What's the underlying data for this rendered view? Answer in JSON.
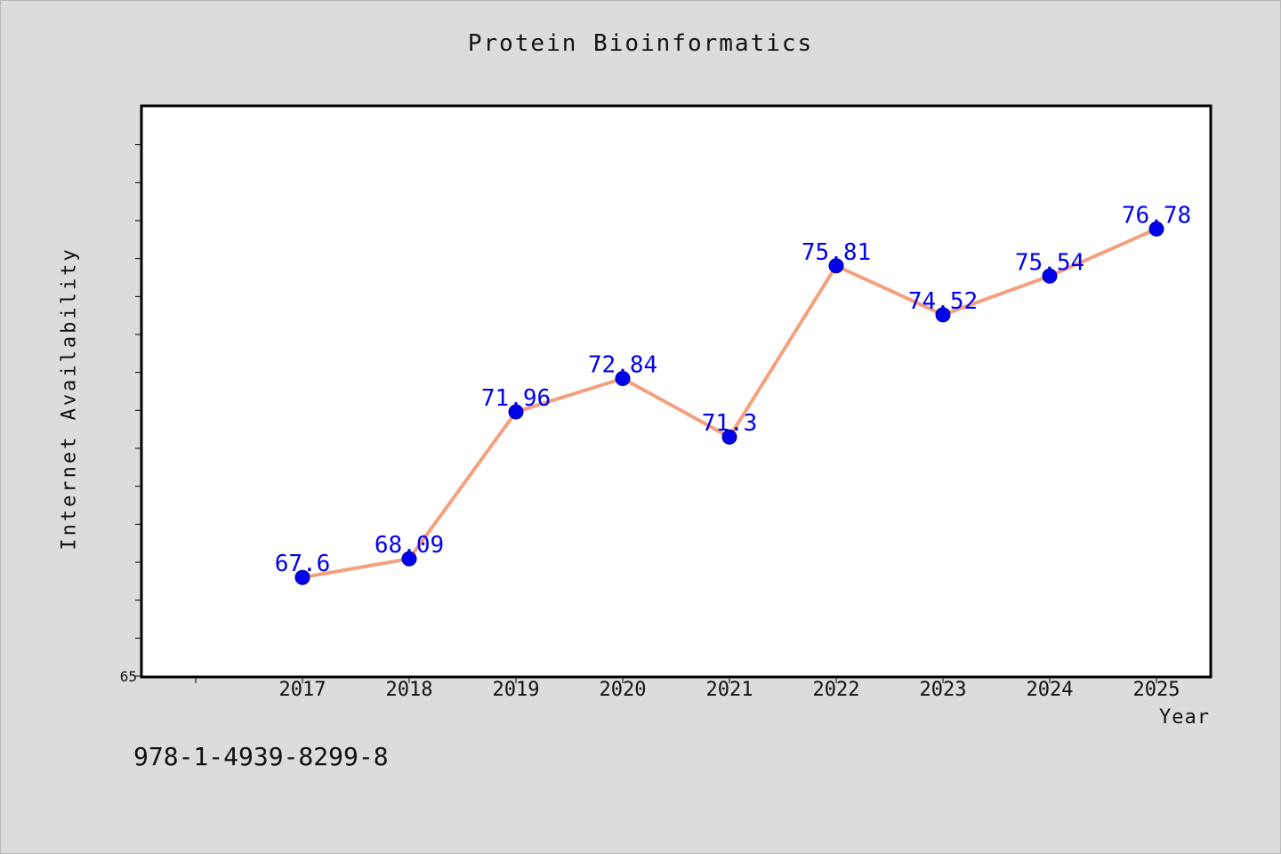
{
  "chart_data": {
    "type": "line",
    "title": "Protein Bioinformatics",
    "xlabel": "Year",
    "ylabel": "Internet Availability",
    "categories": [
      "2017",
      "2018",
      "2019",
      "2020",
      "2021",
      "2022",
      "2023",
      "2024",
      "2025"
    ],
    "series": [
      {
        "values": [
          67.6,
          68.09,
          71.96,
          72.84,
          71.3,
          75.81,
          74.52,
          75.54,
          76.78
        ],
        "labels": [
          "67.6",
          "68.09",
          "71.96",
          "72.84",
          "71.3",
          "75.81",
          "74.52",
          "75.54",
          "76.78"
        ]
      }
    ],
    "ylim": [
      65,
      80
    ],
    "y_tick_label": "65",
    "grid": false,
    "line_color": "#f4a07c",
    "marker_color": "#0000ee",
    "label_color": "#0000ee"
  },
  "footer": {
    "isbn": "978-1-4939-8299-8"
  }
}
